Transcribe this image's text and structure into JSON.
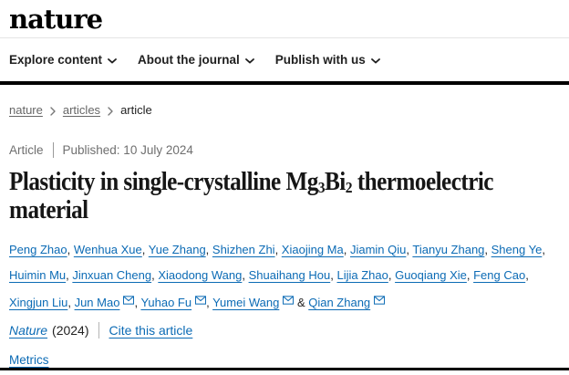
{
  "header": {
    "logo": "nature",
    "nav_items": [
      {
        "label": "Explore content"
      },
      {
        "label": "About the journal"
      },
      {
        "label": "Publish with us"
      }
    ]
  },
  "breadcrumb": {
    "items": [
      {
        "label": "nature"
      },
      {
        "label": "articles"
      },
      {
        "label": "article"
      }
    ]
  },
  "article": {
    "type_label": "Article",
    "published": "Published: 10 July 2024",
    "title": {
      "p1": "Plasticity in single-crystalline Mg",
      "sub1": "3",
      "p2": "Bi",
      "sub2": "2",
      "p3": " thermoelectric",
      "p4": "material"
    },
    "authors": [
      {
        "name": "Peng Zhao"
      },
      {
        "name": "Wenhua Xue"
      },
      {
        "name": "Yue Zhang"
      },
      {
        "name": "Shizhen Zhi"
      },
      {
        "name": "Xiaojing Ma"
      },
      {
        "name": "Jiamin Qiu"
      },
      {
        "name": "Tianyu Zhang"
      },
      {
        "name": "Sheng Ye",
        "sep": ",",
        "break_after": true
      },
      {
        "name": "Huimin Mu"
      },
      {
        "name": "Jinxuan Cheng"
      },
      {
        "name": "Xiaodong Wang"
      },
      {
        "name": "Shuaihang Hou"
      },
      {
        "name": "Lijia Zhao"
      },
      {
        "name": "Guoqiang Xie"
      },
      {
        "name": "Feng Cao",
        "sep": ",",
        "break_after": true
      },
      {
        "name": "Xingjun Liu"
      },
      {
        "name": "Jun Mao",
        "email": true
      },
      {
        "name": "Yuhao Fu",
        "email": true
      },
      {
        "name": "Yumei Wang",
        "email": true,
        "sep": " & "
      },
      {
        "name": "Qian Zhang",
        "email": true,
        "sep": ""
      }
    ],
    "citation": {
      "journal": "Nature",
      "year": "(2024)",
      "cite_link": "Cite this article"
    },
    "metrics_link": "Metrics"
  },
  "colors": {
    "link_blue": "#0c6bb5",
    "breadcrumb_gray": "#666666",
    "meta_gray": "#6f6f6f",
    "rule_black": "#000000"
  }
}
